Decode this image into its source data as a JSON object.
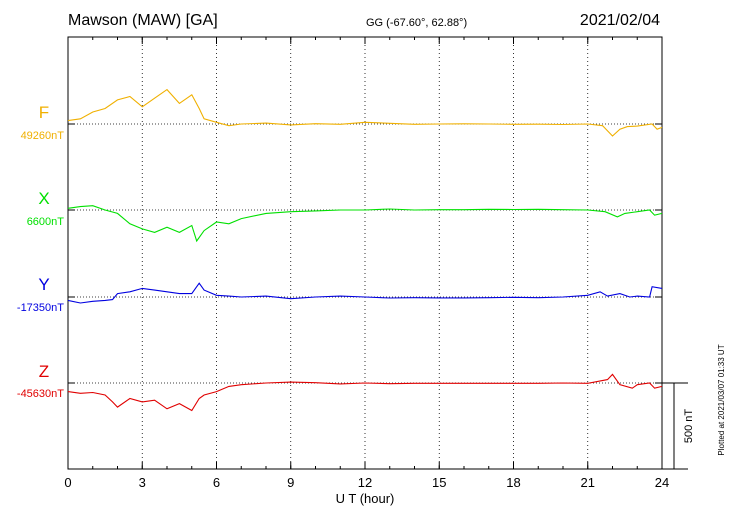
{
  "header": {
    "title": "Mawson (MAW)  [GA]",
    "coords": "GG (-67.60°,  62.88°)",
    "date": "2021/02/04"
  },
  "plotted_note": "Plotted at 2021/03/07 01:33 UT",
  "scale_label": "500 nT",
  "chart_data": {
    "type": "line",
    "xlabel": "U T (hour)",
    "xlim": [
      0,
      24
    ],
    "xticks": [
      0,
      3,
      6,
      9,
      12,
      15,
      18,
      21,
      24
    ],
    "scale_bar_nT": 500,
    "series": [
      {
        "name": "F",
        "baseline_label": "49260nT",
        "baseline": 49260,
        "color": "#f0b000",
        "points": [
          [
            0,
            49280
          ],
          [
            0.5,
            49290
          ],
          [
            1,
            49330
          ],
          [
            1.5,
            49350
          ],
          [
            2,
            49400
          ],
          [
            2.5,
            49420
          ],
          [
            3,
            49360
          ],
          [
            3.5,
            49410
          ],
          [
            4,
            49460
          ],
          [
            4.5,
            49380
          ],
          [
            5,
            49430
          ],
          [
            5.3,
            49350
          ],
          [
            5.5,
            49290
          ],
          [
            6,
            49270
          ],
          [
            6.5,
            49250
          ],
          [
            7,
            49260
          ],
          [
            8,
            49265
          ],
          [
            9,
            49255
          ],
          [
            10,
            49262
          ],
          [
            11,
            49258
          ],
          [
            12,
            49270
          ],
          [
            13,
            49264
          ],
          [
            14,
            49258
          ],
          [
            15,
            49260
          ],
          [
            16,
            49261
          ],
          [
            17,
            49260
          ],
          [
            18,
            49258
          ],
          [
            19,
            49259
          ],
          [
            20,
            49257
          ],
          [
            21,
            49260
          ],
          [
            21.6,
            49250
          ],
          [
            22,
            49190
          ],
          [
            22.3,
            49230
          ],
          [
            22.6,
            49245
          ],
          [
            23,
            49248
          ],
          [
            23.6,
            49260
          ],
          [
            23.8,
            49230
          ],
          [
            24,
            49240
          ]
        ]
      },
      {
        "name": "X",
        "baseline_label": "6600nT",
        "baseline": 6600,
        "color": "#00e000",
        "points": [
          [
            0,
            6610
          ],
          [
            0.5,
            6620
          ],
          [
            1,
            6625
          ],
          [
            1.5,
            6600
          ],
          [
            2,
            6580
          ],
          [
            2.5,
            6520
          ],
          [
            3,
            6490
          ],
          [
            3.5,
            6470
          ],
          [
            4,
            6500
          ],
          [
            4.5,
            6470
          ],
          [
            5,
            6510
          ],
          [
            5.2,
            6420
          ],
          [
            5.5,
            6480
          ],
          [
            6,
            6530
          ],
          [
            6.5,
            6520
          ],
          [
            7,
            6550
          ],
          [
            8,
            6580
          ],
          [
            9,
            6590
          ],
          [
            10,
            6595
          ],
          [
            11,
            6600
          ],
          [
            12,
            6600
          ],
          [
            13,
            6606
          ],
          [
            14,
            6600
          ],
          [
            15,
            6602
          ],
          [
            16,
            6602
          ],
          [
            17,
            6604
          ],
          [
            18,
            6603
          ],
          [
            19,
            6604
          ],
          [
            20,
            6602
          ],
          [
            21,
            6600
          ],
          [
            21.7,
            6590
          ],
          [
            22.2,
            6560
          ],
          [
            22.5,
            6580
          ],
          [
            23,
            6590
          ],
          [
            23.5,
            6600
          ],
          [
            23.7,
            6570
          ],
          [
            24,
            6580
          ]
        ]
      },
      {
        "name": "Y",
        "baseline_label": "-17350nT",
        "baseline": -17350,
        "color": "#0000e0",
        "points": [
          [
            0,
            -17370
          ],
          [
            0.5,
            -17385
          ],
          [
            1,
            -17375
          ],
          [
            1.5,
            -17370
          ],
          [
            1.8,
            -17365
          ],
          [
            2,
            -17330
          ],
          [
            2.5,
            -17320
          ],
          [
            3,
            -17300
          ],
          [
            3.5,
            -17310
          ],
          [
            4,
            -17320
          ],
          [
            4.5,
            -17330
          ],
          [
            5,
            -17330
          ],
          [
            5.3,
            -17270
          ],
          [
            5.5,
            -17310
          ],
          [
            6,
            -17340
          ],
          [
            6.5,
            -17345
          ],
          [
            7,
            -17350
          ],
          [
            8,
            -17345
          ],
          [
            9,
            -17360
          ],
          [
            10,
            -17350
          ],
          [
            11,
            -17345
          ],
          [
            12,
            -17350
          ],
          [
            13,
            -17356
          ],
          [
            14,
            -17354
          ],
          [
            15,
            -17355
          ],
          [
            16,
            -17355
          ],
          [
            17,
            -17354
          ],
          [
            18,
            -17352
          ],
          [
            19,
            -17354
          ],
          [
            20,
            -17350
          ],
          [
            21,
            -17340
          ],
          [
            21.5,
            -17320
          ],
          [
            21.8,
            -17345
          ],
          [
            22.3,
            -17330
          ],
          [
            22.7,
            -17350
          ],
          [
            23,
            -17345
          ],
          [
            23.5,
            -17350
          ],
          [
            23.6,
            -17290
          ],
          [
            24,
            -17300
          ]
        ]
      },
      {
        "name": "Z",
        "baseline_label": "-45630nT",
        "baseline": -45630,
        "color": "#e00000",
        "points": [
          [
            0,
            -45680
          ],
          [
            0.5,
            -45690
          ],
          [
            1,
            -45685
          ],
          [
            1.5,
            -45700
          ],
          [
            1.8,
            -45740
          ],
          [
            2,
            -45770
          ],
          [
            2.5,
            -45720
          ],
          [
            3,
            -45740
          ],
          [
            3.5,
            -45730
          ],
          [
            4,
            -45780
          ],
          [
            4.5,
            -45750
          ],
          [
            5,
            -45790
          ],
          [
            5.3,
            -45720
          ],
          [
            5.5,
            -45700
          ],
          [
            6,
            -45680
          ],
          [
            6.5,
            -45650
          ],
          [
            7,
            -45640
          ],
          [
            8,
            -45630
          ],
          [
            9,
            -45625
          ],
          [
            10,
            -45628
          ],
          [
            11,
            -45635
          ],
          [
            12,
            -45630
          ],
          [
            13,
            -45634
          ],
          [
            14,
            -45632
          ],
          [
            15,
            -45632
          ],
          [
            16,
            -45632
          ],
          [
            17,
            -45632
          ],
          [
            18,
            -45632
          ],
          [
            19,
            -45632
          ],
          [
            20,
            -45630
          ],
          [
            21,
            -45632
          ],
          [
            21.8,
            -45610
          ],
          [
            22,
            -45580
          ],
          [
            22.3,
            -45640
          ],
          [
            22.8,
            -45660
          ],
          [
            23,
            -45640
          ],
          [
            23.5,
            -45630
          ],
          [
            23.7,
            -45660
          ],
          [
            24,
            -45650
          ]
        ]
      }
    ]
  }
}
